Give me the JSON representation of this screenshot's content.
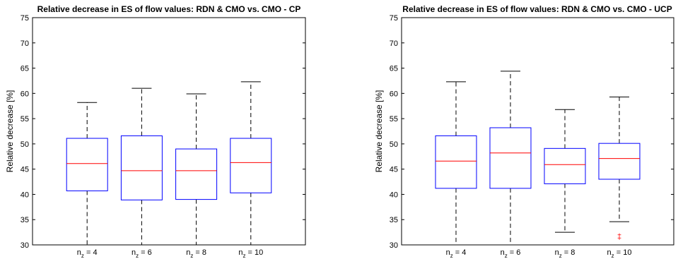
{
  "chart_data": [
    {
      "type": "box",
      "title": "Relative decrease in ES of flow values: RDN & CMO vs. CMO - CP",
      "ylabel": "Relative decrease [%]",
      "xlabel": "",
      "ylim": [
        30,
        75
      ],
      "yticks": [
        30,
        35,
        40,
        45,
        50,
        55,
        60,
        65,
        70,
        75
      ],
      "categories": [
        {
          "sym": "n",
          "sub": "z",
          "rest": " = 4"
        },
        {
          "sym": "n",
          "sub": "z",
          "rest": " = 6"
        },
        {
          "sym": "n",
          "sub": "z",
          "rest": " = 8"
        },
        {
          "sym": "n",
          "sub": "z",
          "rest": " = 10"
        }
      ],
      "boxes": [
        {
          "whisker_low": 30,
          "q1": 40.7,
          "median": 46.1,
          "q3": 51.1,
          "whisker_high": 58.2,
          "outliers": []
        },
        {
          "whisker_low": 30,
          "q1": 38.9,
          "median": 44.7,
          "q3": 51.6,
          "whisker_high": 61.0,
          "outliers": []
        },
        {
          "whisker_low": 30,
          "q1": 39.0,
          "median": 44.7,
          "q3": 49.0,
          "whisker_high": 59.9,
          "outliers": []
        },
        {
          "whisker_low": 30,
          "q1": 40.3,
          "median": 46.3,
          "q3": 51.1,
          "whisker_high": 62.3,
          "outliers": []
        }
      ],
      "grid": false,
      "colors": {
        "box": "#0000ff",
        "median": "#ff0000",
        "whisker": "#000000",
        "outlier": "#ff0000"
      }
    },
    {
      "type": "box",
      "title": "Relative decrease in ES of flow values: RDN & CMO vs. CMO - UCP",
      "ylabel": "Relative decrease [%]",
      "xlabel": "",
      "ylim": [
        30,
        75
      ],
      "yticks": [
        30,
        35,
        40,
        45,
        50,
        55,
        60,
        65,
        70,
        75
      ],
      "categories": [
        {
          "sym": "n",
          "sub": "z",
          "rest": " = 4"
        },
        {
          "sym": "n",
          "sub": "z",
          "rest": " = 6"
        },
        {
          "sym": "n",
          "sub": "z",
          "rest": " = 8"
        },
        {
          "sym": "n",
          "sub": "z",
          "rest": " = 10"
        }
      ],
      "boxes": [
        {
          "whisker_low": 30,
          "q1": 41.2,
          "median": 46.6,
          "q3": 51.6,
          "whisker_high": 62.3,
          "outliers": []
        },
        {
          "whisker_low": 30,
          "q1": 41.2,
          "median": 48.2,
          "q3": 53.2,
          "whisker_high": 64.4,
          "outliers": []
        },
        {
          "whisker_low": 32.5,
          "q1": 42.1,
          "median": 45.9,
          "q3": 49.1,
          "whisker_high": 56.8,
          "outliers": []
        },
        {
          "whisker_low": 34.6,
          "q1": 43.0,
          "median": 47.1,
          "q3": 50.1,
          "whisker_high": 59.3,
          "outliers": [
            31.4,
            32.0
          ]
        }
      ],
      "grid": false,
      "colors": {
        "box": "#0000ff",
        "median": "#ff0000",
        "whisker": "#000000",
        "outlier": "#ff0000"
      }
    }
  ]
}
